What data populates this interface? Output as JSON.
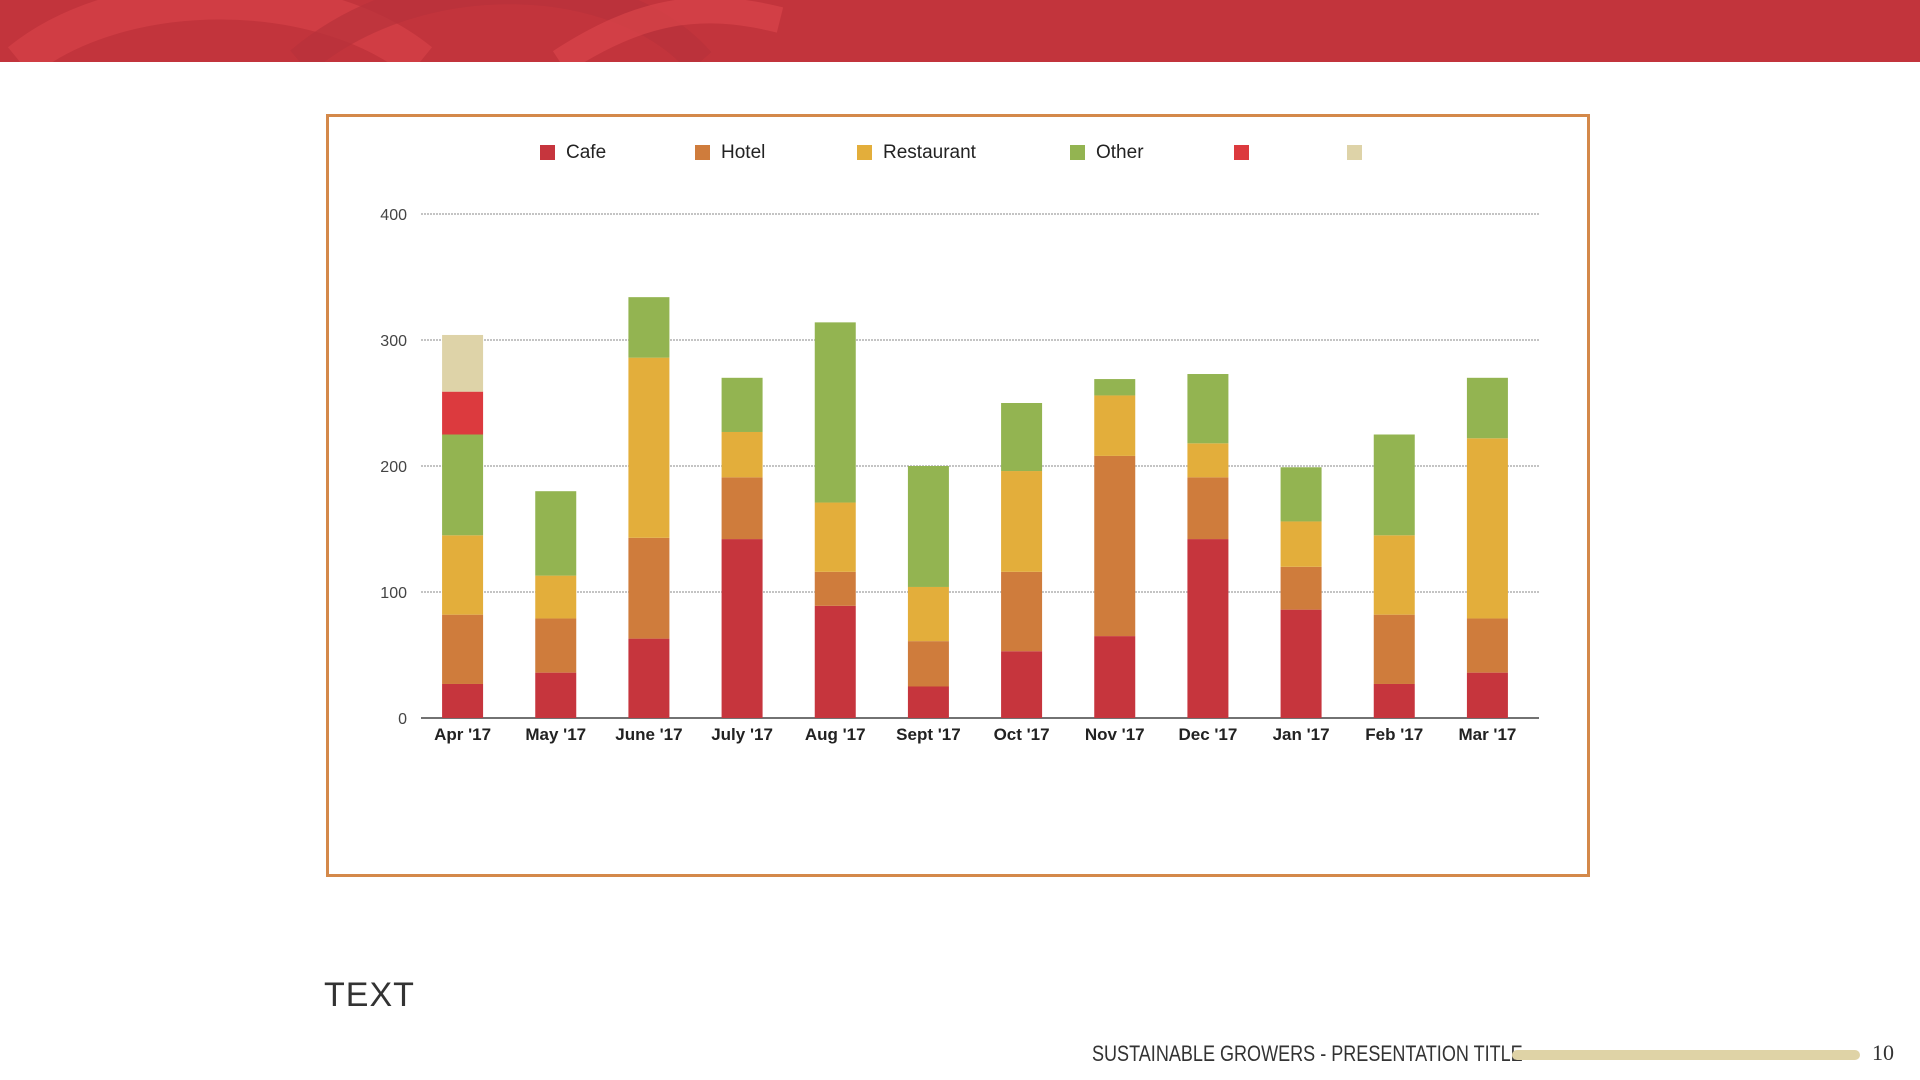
{
  "colors": {
    "band": "#c2343c",
    "band_swirl": "#d8444a",
    "frame": "#d4894a",
    "cafe": "#c6353d",
    "hotel": "#cf7c3c",
    "restaurant": "#e3ae3b",
    "other": "#93b451",
    "series5": "#dc3a3e",
    "series6": "#ded3a8"
  },
  "chart_data": {
    "type": "bar",
    "stacked": true,
    "categories": [
      "Apr '17",
      "May '17",
      "June '17",
      "July '17",
      "Aug '17",
      "Sept '17",
      "Oct '17",
      "Nov '17",
      "Dec '17",
      "Jan '17",
      "Feb '17",
      "Mar '17"
    ],
    "series": [
      {
        "name": "Cafe",
        "color": "#c6353d",
        "values": [
          27,
          36,
          63,
          142,
          89,
          25,
          53,
          65,
          142,
          86,
          27,
          36
        ]
      },
      {
        "name": "Hotel",
        "color": "#cf7c3c",
        "values": [
          55,
          43,
          80,
          49,
          27,
          36,
          63,
          143,
          49,
          34,
          55,
          43
        ]
      },
      {
        "name": "Restaurant",
        "color": "#e3ae3b",
        "values": [
          63,
          34,
          143,
          36,
          55,
          43,
          80,
          48,
          27,
          36,
          63,
          143
        ]
      },
      {
        "name": "Other",
        "color": "#93b451",
        "values": [
          80,
          67,
          48,
          43,
          143,
          96,
          54,
          13,
          55,
          43,
          80,
          48
        ]
      },
      {
        "name": "",
        "color": "#dc3a3e",
        "values": [
          34,
          0,
          0,
          0,
          0,
          0,
          0,
          0,
          0,
          0,
          0,
          0
        ]
      },
      {
        "name": "",
        "color": "#ded3a8",
        "values": [
          45,
          0,
          0,
          0,
          0,
          0,
          0,
          0,
          0,
          0,
          0,
          0
        ]
      }
    ],
    "yticks": [
      "0",
      "100",
      "200",
      "300",
      "400"
    ],
    "ylim": [
      0,
      400
    ],
    "grid": true,
    "legend": "top"
  },
  "text": {
    "body": "TEXT",
    "footer_title": "SUSTAINABLE GROWERS - PRESENTATION TITLE",
    "page_number": "10"
  }
}
